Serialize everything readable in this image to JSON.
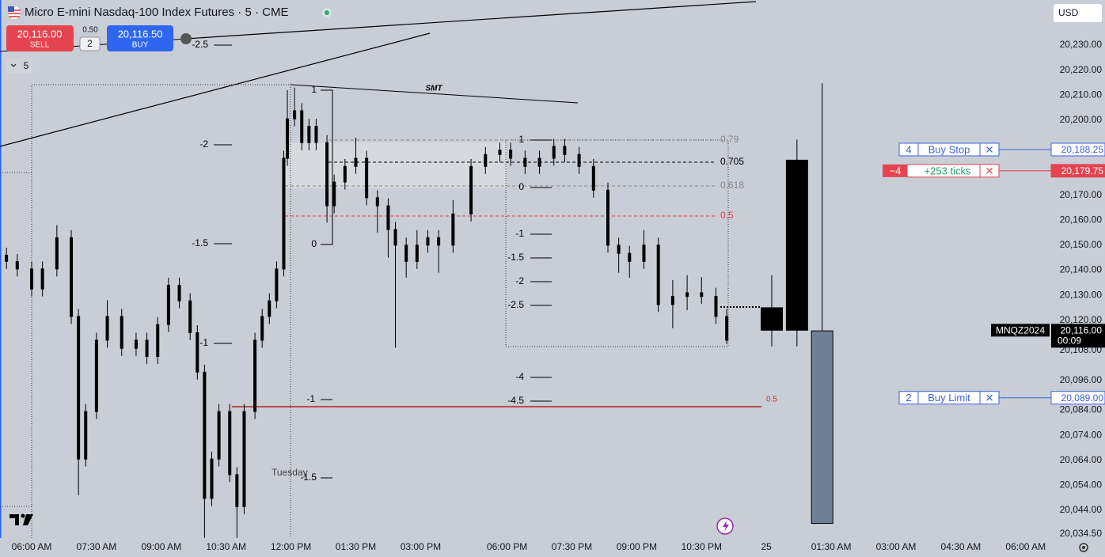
{
  "header": {
    "symbol": "Micro E-mini Nasdaq-100 Index Futures · 5 · CME",
    "interval": "5",
    "currency": "USD"
  },
  "trade_panel": {
    "sell_price": "20,116.00",
    "sell": "SELL",
    "spread": "0.50",
    "quantity": 2,
    "buy_price": "20,116.50",
    "buy": "BUY"
  },
  "chart_data": {
    "type": "candlestick",
    "color": "#000000",
    "x": [
      -7,
      -4,
      0,
      3,
      7,
      11,
      13,
      15,
      18,
      21,
      25,
      29,
      32,
      35,
      38,
      41,
      44,
      46,
      48,
      50,
      52,
      55,
      57,
      59,
      62,
      64,
      66,
      68,
      70,
      71,
      73,
      75,
      77,
      79,
      82,
      84,
      87,
      90,
      93,
      96,
      99,
      101,
      104,
      107,
      110,
      113,
      117,
      122,
      126,
      130,
      133,
      137,
      141,
      145,
      148,
      152,
      156,
      160,
      163,
      166,
      170,
      174,
      178,
      182,
      186,
      190,
      193
    ],
    "open": [
      20146,
      20143.5,
      20140.5,
      20132.5,
      20140.5,
      20153,
      20121.5,
      20064.5,
      20083.5,
      20112,
      20121.5,
      20108.75,
      20112,
      20105.5,
      20118.25,
      20134,
      20127.75,
      20115,
      20099.25,
      20048.75,
      20064.5,
      20083.5,
      20058.25,
      20045.5,
      20083.5,
      20112,
      20121.5,
      20127.75,
      20140.5,
      20184.75,
      20200.5,
      20203.75,
      20191,
      20197.5,
      20191,
      20165.75,
      20175.25,
      20181.5,
      20184.75,
      20169,
      20165.75,
      20156.25,
      20150,
      20143.5,
      20150,
      20153,
      20150,
      20162.5,
      20181.5,
      20186.25,
      20188,
      20184.75,
      20181.5,
      20184.75,
      20189.5,
      20186.25,
      20181.5,
      20172,
      20150,
      20146.75,
      20143.5,
      20150,
      20126.25,
      20129.5,
      20131,
      20129.5,
      20121.5
    ],
    "high": [
      20149,
      20146.5,
      20143.5,
      20143.5,
      20158,
      20156,
      20124.5,
      20086.5,
      20115,
      20128,
      20124.5,
      20115,
      20115,
      20121.25,
      20137,
      20137,
      20130.75,
      20118,
      20102.25,
      20067.5,
      20086.5,
      20086.5,
      20061.25,
      20086.5,
      20115,
      20124.5,
      20130.75,
      20143.5,
      20187.75,
      20212,
      20213,
      20206.75,
      20200.5,
      20200.5,
      20194,
      20178.25,
      20184.5,
      20193,
      20187.75,
      20172,
      20168.75,
      20159.25,
      20153,
      20156,
      20156,
      20156,
      20168,
      20184.5,
      20189.25,
      20191,
      20191,
      20187.75,
      20187.75,
      20192.5,
      20192.5,
      20189.25,
      20184.5,
      20175,
      20153,
      20149.75,
      20156,
      20153,
      20136,
      20138,
      20137.25,
      20133,
      20124.5
    ],
    "low": [
      20140.5,
      20137.5,
      20129.5,
      20129.5,
      20137.5,
      20118.5,
      20050,
      20061.5,
      20080.5,
      20109,
      20105.75,
      20105.75,
      20102.5,
      20102.5,
      20115.25,
      20124.75,
      20112,
      20096.25,
      20033,
      20045.75,
      20061.5,
      20055.25,
      20033,
      20042.5,
      20080.5,
      20109,
      20118.5,
      20124.75,
      20137.5,
      20181.75,
      20197.5,
      20188,
      20188,
      20188,
      20159,
      20162.75,
      20172.25,
      20178.5,
      20166,
      20155,
      20145,
      20109,
      20137,
      20140.5,
      20147,
      20139,
      20147,
      20159.5,
      20178.5,
      20183.25,
      20181.75,
      20178.5,
      20178.5,
      20181.75,
      20183.25,
      20178.5,
      20169,
      20147,
      20139,
      20137,
      20140.5,
      20123.25,
      20116.75,
      20124,
      20126.5,
      20118.5,
      20110.5
    ],
    "close": [
      20143.5,
      20140.5,
      20132.5,
      20140.5,
      20153,
      20121.5,
      20064.5,
      20083.5,
      20112,
      20121.5,
      20108.75,
      20112,
      20105.5,
      20118.25,
      20134,
      20127.75,
      20115,
      20099.25,
      20048.75,
      20064.5,
      20083.5,
      20058.25,
      20045.5,
      20083.5,
      20112,
      20121.5,
      20127.75,
      20140.5,
      20184.75,
      20200.5,
      20203.75,
      20191,
      20197.5,
      20191,
      20165.75,
      20175.25,
      20181.5,
      20184.75,
      20169,
      20165.75,
      20156.25,
      20150,
      20143.5,
      20150,
      20153,
      20150,
      20162.5,
      20181.5,
      20186.25,
      20188,
      20184.75,
      20181.5,
      20184.75,
      20189.5,
      20186.25,
      20181.5,
      20172,
      20150,
      20146.75,
      20143.5,
      20150,
      20126.25,
      20129.5,
      20131,
      20129.5,
      20121.5,
      20112
    ],
    "htf": {
      "x": [
        205.5,
        212.5,
        219.5
      ],
      "open": [
        20125,
        20184,
        20115.75
      ],
      "high": [
        20138,
        20192.25,
        20214.75
      ],
      "low": [
        20109.5,
        20109.5,
        20038.75
      ],
      "close": [
        20116,
        20116,
        20038.75
      ],
      "colors": [
        "#000000",
        "#000000",
        "#6e7f96"
      ]
    },
    "xlim": [
      -8.79,
      283.08
    ],
    "ylim": [
      20032.92,
      20248.03
    ],
    "xticks": [
      {
        "value": 0,
        "label": "06:00 AM"
      },
      {
        "value": 18,
        "label": "07:30 AM"
      },
      {
        "value": 36,
        "label": "09:00 AM"
      },
      {
        "value": 54,
        "label": "10:30 AM"
      },
      {
        "value": 72,
        "label": "12:00 PM"
      },
      {
        "value": 90,
        "label": "01:30 PM"
      },
      {
        "value": 108,
        "label": "03:00 PM"
      },
      {
        "value": 132,
        "label": "06:00 PM"
      },
      {
        "value": 150,
        "label": "07:30 PM"
      },
      {
        "value": 168,
        "label": "09:00 PM"
      },
      {
        "value": 186,
        "label": "10:30 PM"
      },
      {
        "value": 204,
        "label": "25"
      },
      {
        "value": 222,
        "label": "01:30 AM"
      },
      {
        "value": 240,
        "label": "03:00 AM"
      },
      {
        "value": 258,
        "label": "04:30 AM"
      },
      {
        "value": 276,
        "label": "06:00 AM"
      }
    ],
    "yticks": [
      {
        "value": 20230,
        "label": "20,230.00"
      },
      {
        "value": 20220,
        "label": "20,220.00"
      },
      {
        "value": 20210,
        "label": "20,210.00"
      },
      {
        "value": 20200,
        "label": "20,200.00"
      },
      {
        "value": 20170,
        "label": "20,170.00"
      },
      {
        "value": 20160,
        "label": "20,160.00"
      },
      {
        "value": 20150,
        "label": "20,150.00"
      },
      {
        "value": 20140,
        "label": "20,140.00"
      },
      {
        "value": 20130,
        "label": "20,130.00"
      },
      {
        "value": 20120,
        "label": "20,120.00"
      },
      {
        "value": 20108,
        "label": "20,108.00"
      },
      {
        "value": 20096,
        "label": "20,096.00"
      },
      {
        "value": 20084,
        "label": "20,084.00"
      },
      {
        "value": 20074,
        "label": "20,074.00"
      },
      {
        "value": 20064,
        "label": "20,064.00"
      },
      {
        "value": 20054,
        "label": "20,054.00"
      },
      {
        "value": 20044,
        "label": "20,044.00"
      },
      {
        "value": 20034.5,
        "label": "20,034.50"
      }
    ],
    "grid": false,
    "annotations": [
      "-2.5",
      "-2",
      "-1.5",
      "-1",
      "1",
      "0",
      "-1",
      "-1.5",
      "1",
      "0",
      "-1",
      "-1.5",
      "-2",
      "-2.5",
      "-4",
      "-4.5",
      "0.79",
      "0.705",
      "0.618",
      "0.5",
      "0.5",
      "SMT",
      "Tuesday"
    ],
    "orders": [
      {
        "qty": 4,
        "label": "Buy Stop",
        "price": {
          "value": 20188.25,
          "label": "20,188.25"
        },
        "color": "#3d63dd"
      },
      {
        "qty": "−4",
        "label": "+253 ticks",
        "price": {
          "value": 20179.75,
          "label": "20,179.75"
        },
        "color": "#e5434f"
      },
      {
        "qty": 2,
        "label": "Buy Limit",
        "price": {
          "value": 20089,
          "label": "20,089.00"
        },
        "color": "#3d63dd"
      }
    ],
    "last_price": {
      "symbol": "MNQZ2024",
      "price": {
        "value": 20116,
        "label": "20,116.00"
      },
      "countdown": "00:09"
    }
  }
}
